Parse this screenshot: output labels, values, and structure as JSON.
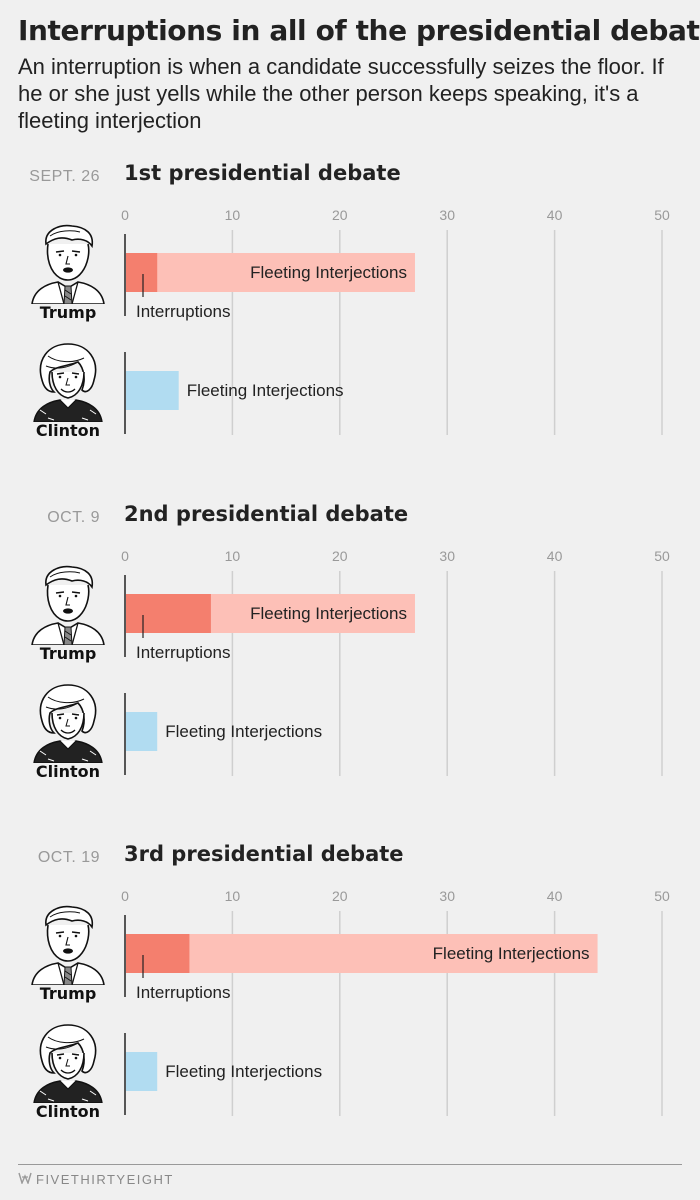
{
  "header": {
    "title": "Interruptions in all of the presidential debates",
    "subtitle": "An interruption is when a candidate successfully seizes the floor. If he or she just yells while the other person keeps speaking, it's a fleeting interjection"
  },
  "footer": {
    "brand": "FIVETHIRTYEIGHT"
  },
  "colors": {
    "trump_interruptions": "#f47f6e",
    "trump_interjections": "#fdc0b7",
    "clinton_interjections": "#b1dcf1",
    "gridline": "#cfcfcf",
    "axis": "#222222",
    "tick_label": "#999999"
  },
  "chart_data": [
    {
      "type": "bar",
      "date": "SEPT. 26",
      "title": "1st presidential debate",
      "xlim": [
        0,
        50
      ],
      "ticks": [
        0,
        10,
        20,
        30,
        40,
        50
      ],
      "rows": [
        {
          "name": "Trump",
          "interruptions": 3,
          "total": 27,
          "interruptions_label": "Interruptions",
          "interjections_label": "Fleeting Interjections"
        },
        {
          "name": "Clinton",
          "interruptions": 0,
          "total": 5,
          "interruptions_label": "",
          "interjections_label": "Fleeting Interjections"
        }
      ]
    },
    {
      "type": "bar",
      "date": "OCT. 9",
      "title": "2nd presidential debate",
      "xlim": [
        0,
        50
      ],
      "ticks": [
        0,
        10,
        20,
        30,
        40,
        50
      ],
      "rows": [
        {
          "name": "Trump",
          "interruptions": 8,
          "total": 27,
          "interruptions_label": "Interruptions",
          "interjections_label": "Fleeting Interjections"
        },
        {
          "name": "Clinton",
          "interruptions": 0,
          "total": 3,
          "interruptions_label": "",
          "interjections_label": "Fleeting Interjections"
        }
      ]
    },
    {
      "type": "bar",
      "date": "OCT. 19",
      "title": "3rd presidential debate",
      "xlim": [
        0,
        50
      ],
      "ticks": [
        0,
        10,
        20,
        30,
        40,
        50
      ],
      "rows": [
        {
          "name": "Trump",
          "interruptions": 6,
          "total": 44,
          "interruptions_label": "Interruptions",
          "interjections_label": "Fleeting Interjections"
        },
        {
          "name": "Clinton",
          "interruptions": 0,
          "total": 3,
          "interruptions_label": "",
          "interjections_label": "Fleeting Interjections"
        }
      ]
    }
  ]
}
